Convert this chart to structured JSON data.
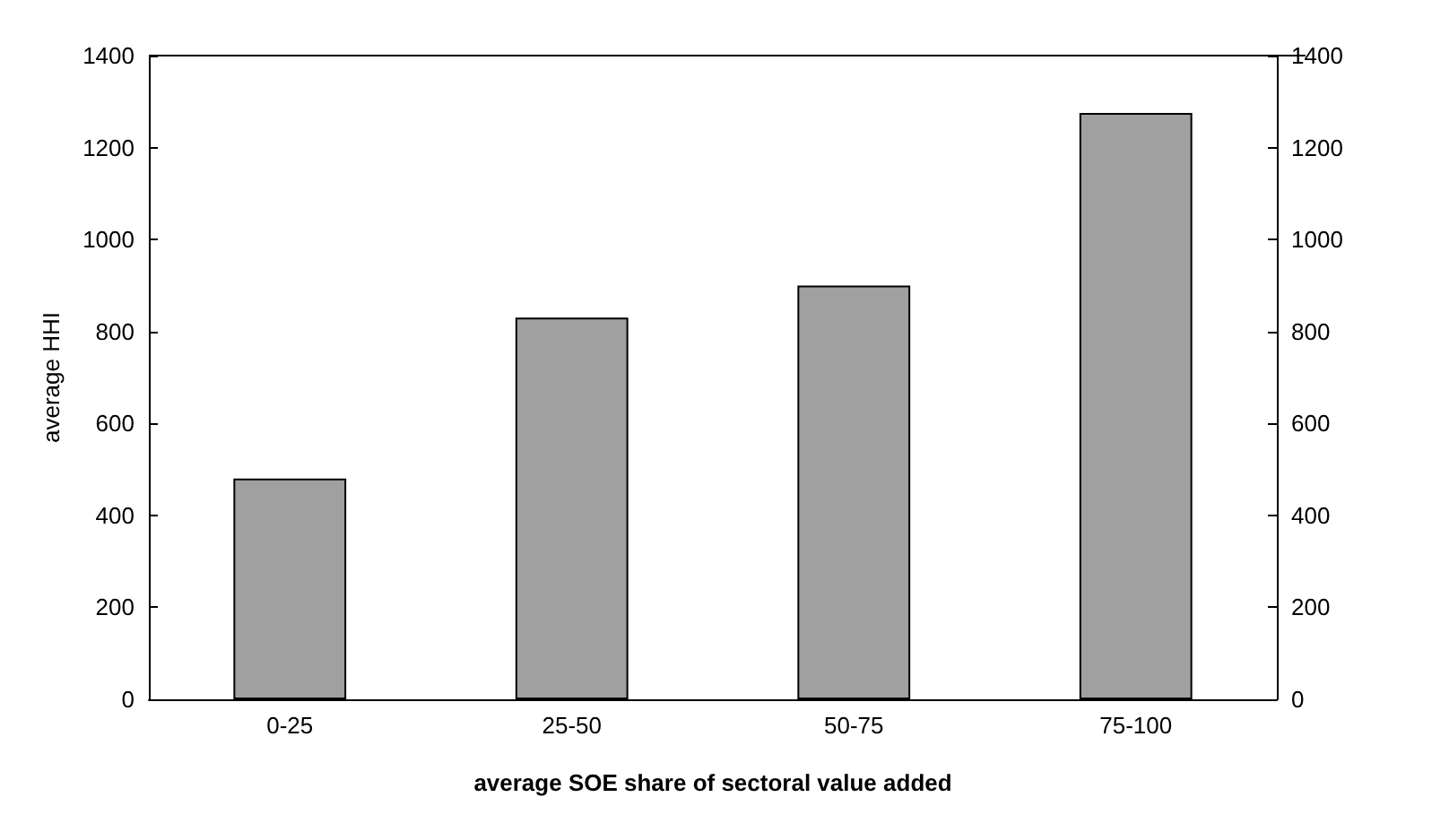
{
  "chart_data": {
    "type": "bar",
    "xlabel": "average SOE share of sectoral value added",
    "ylabel": "average HHI",
    "categories": [
      "0-25",
      "25-50",
      "50-75",
      "75-100"
    ],
    "values": [
      480,
      830,
      900,
      1275
    ],
    "color": "#a0a0a0",
    "ylim": [
      0,
      1400
    ],
    "yticks": [
      0,
      200,
      400,
      600,
      800,
      1000,
      1200,
      1400
    ],
    "y2lim": [
      0,
      1400
    ],
    "y2ticks": [
      0,
      200,
      400,
      600,
      800,
      1000,
      1200,
      1400
    ],
    "grid": false
  }
}
